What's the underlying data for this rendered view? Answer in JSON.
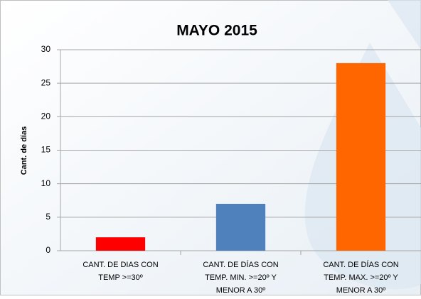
{
  "chart_data": {
    "type": "bar",
    "title": "MAYO 2015",
    "y_label": "Cant. de días",
    "categories": [
      "CANT. DE DIAS CON TEMP >=30º",
      "CANT. DE DÍAS CON TEMP. MIN. >=20º Y MENOR A 30º",
      "CANT. DE DÍAS CON TEMP. MAX. >=20º Y MENOR A 30º"
    ],
    "values": [
      2,
      7,
      28
    ],
    "colors": [
      "#ff0000",
      "#4f81bd",
      "#ff6600"
    ],
    "ylim": [
      0,
      30
    ],
    "yticks": [
      0,
      5,
      10,
      15,
      20,
      25,
      30
    ],
    "grid": true
  }
}
